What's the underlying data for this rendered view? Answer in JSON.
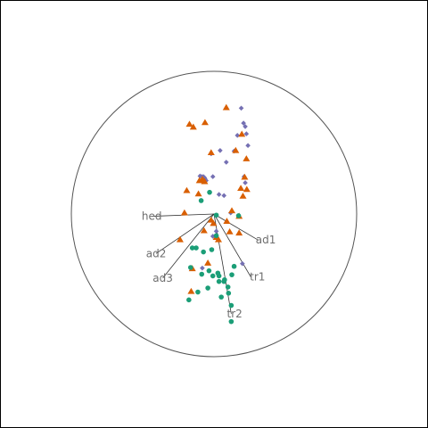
{
  "chart_data": {
    "type": "scatter",
    "title": "",
    "xlabel": "",
    "ylabel": "",
    "grid": false,
    "legend": "none",
    "xlim": [
      -1,
      1
    ],
    "ylim": [
      -1,
      1
    ],
    "origin": [
      0.0,
      0.0
    ],
    "colors": {
      "purple": "#7570b3",
      "orange": "#d95f02",
      "green": "#1b9e77",
      "line": "#333333",
      "circle": "#555555",
      "label": "#6e6e6e"
    },
    "series": [
      {
        "color_key": "purple",
        "marker": "diamond",
        "points": [
          [
            0.191,
            0.742
          ],
          [
            0.207,
            0.637
          ],
          [
            0.219,
            0.613
          ],
          [
            0.227,
            0.562
          ],
          [
            0.238,
            0.48
          ],
          [
            0.164,
            0.551
          ],
          [
            0.043,
            0.445
          ],
          [
            0.141,
            0.441
          ],
          [
            0.086,
            0.363
          ],
          [
            -0.02,
            0.422
          ],
          [
            -0.098,
            0.266
          ],
          [
            -0.086,
            0.262
          ],
          [
            -0.074,
            0.262
          ],
          [
            -0.066,
            0.254
          ],
          [
            -0.063,
            0.246
          ],
          [
            -0.055,
            0.234
          ],
          [
            -0.008,
            0.262
          ],
          [
            0.035,
            0.137
          ],
          [
            0.07,
            0.129
          ],
          [
            0.211,
            0.262
          ],
          [
            0.219,
            0.219
          ],
          [
            0.117,
            0.008
          ],
          [
            0.016,
            -0.121
          ],
          [
            -0.008,
            -0.156
          ],
          [
            -0.082,
            -0.379
          ],
          [
            0.199,
            -0.348
          ]
        ]
      },
      {
        "color_key": "orange",
        "marker": "triangle",
        "points": [
          [
            0.086,
            0.746
          ],
          [
            -0.063,
            0.641
          ],
          [
            -0.172,
            0.629
          ],
          [
            -0.145,
            0.609
          ],
          [
            0.195,
            0.559
          ],
          [
            0.152,
            0.445
          ],
          [
            0.227,
            0.387
          ],
          [
            -0.02,
            0.43
          ],
          [
            -0.082,
            0.242
          ],
          [
            -0.078,
            0.238
          ],
          [
            -0.102,
            0.234
          ],
          [
            -0.066,
            0.227
          ],
          [
            0.215,
            0.258
          ],
          [
            0.188,
            0.18
          ],
          [
            0.23,
            0.172
          ],
          [
            -0.191,
            0.164
          ],
          [
            -0.109,
            0.141
          ],
          [
            0.203,
            0.125
          ],
          [
            -0.207,
            0.008
          ],
          [
            0.176,
            -0.016
          ],
          [
            -0.02,
            -0.043
          ],
          [
            0.09,
            -0.051
          ],
          [
            0.125,
            0.023
          ],
          [
            -0.07,
            -0.117
          ],
          [
            0.016,
            -0.164
          ],
          [
            0.031,
            -0.18
          ],
          [
            0.176,
            -0.133
          ],
          [
            0.11,
            -0.125
          ],
          [
            -0.238,
            -0.18
          ],
          [
            -0.043,
            -0.344
          ],
          [
            -0.152,
            -0.383
          ],
          [
            -0.16,
            -0.543
          ],
          [
            -0.004,
            -0.066
          ]
        ]
      },
      {
        "color_key": "green",
        "marker": "circle",
        "points": [
          [
            0.016,
            -0.008
          ],
          [
            -0.031,
            0.152
          ],
          [
            -0.09,
            0.094
          ],
          [
            0.172,
            -0.012
          ],
          [
            0.016,
            -0.152
          ],
          [
            -0.152,
            -0.238
          ],
          [
            -0.125,
            -0.238
          ],
          [
            -0.074,
            -0.266
          ],
          [
            -0.016,
            -0.25
          ],
          [
            -0.164,
            -0.375
          ],
          [
            -0.086,
            -0.422
          ],
          [
            -0.035,
            -0.398
          ],
          [
            -0.008,
            -0.434
          ],
          [
            0.035,
            -0.434
          ],
          [
            0.027,
            -0.414
          ],
          [
            0.141,
            -0.367
          ],
          [
            0.125,
            -0.426
          ],
          [
            0.07,
            -0.473
          ],
          [
            0.035,
            -0.473
          ],
          [
            0.074,
            -0.461
          ],
          [
            0.098,
            -0.512
          ],
          [
            -0.043,
            -0.519
          ],
          [
            0.102,
            -0.555
          ],
          [
            -0.113,
            -0.547
          ],
          [
            0.051,
            -0.582
          ],
          [
            -0.176,
            -0.602
          ],
          [
            0.121,
            -0.641
          ],
          [
            0.121,
            -0.754
          ]
        ]
      }
    ],
    "vectors": [
      {
        "label": "hed",
        "tip": [
          -0.436,
          -0.016
        ],
        "label_at": [
          -0.436,
          -0.016
        ]
      },
      {
        "label": "ad1",
        "tip": [
          0.305,
          -0.18
        ],
        "label_at": [
          0.363,
          -0.18
        ]
      },
      {
        "label": "ad2",
        "tip": [
          -0.406,
          -0.277
        ],
        "label_at": [
          -0.406,
          -0.277
        ]
      },
      {
        "label": "ad3",
        "tip": [
          -0.359,
          -0.449
        ],
        "label_at": [
          -0.359,
          -0.449
        ]
      },
      {
        "label": "tr1",
        "tip": [
          0.258,
          -0.441
        ],
        "label_at": [
          0.305,
          -0.441
        ]
      },
      {
        "label": "tr2",
        "tip": [
          0.121,
          -0.699
        ],
        "label_at": [
          0.145,
          -0.699
        ]
      }
    ]
  }
}
